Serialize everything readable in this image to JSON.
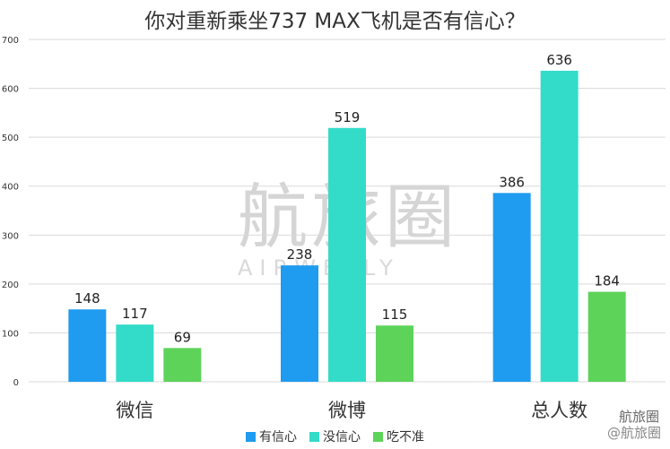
{
  "chart_data": {
    "type": "bar",
    "title": "你对重新乘坐737 MAX飞机是否有信心？",
    "categories": [
      "微信",
      "微博",
      "总人数"
    ],
    "series": [
      {
        "name": "有信心",
        "values": [
          148,
          238,
          386
        ],
        "color": "#1f9bf0"
      },
      {
        "name": "没信心",
        "values": [
          117,
          519,
          636
        ],
        "color": "#33dcc9"
      },
      {
        "name": "吃不准",
        "values": [
          69,
          115,
          184
        ],
        "color": "#5dd35a"
      }
    ],
    "ylim": [
      0,
      700
    ],
    "yticks": [
      0,
      100,
      200,
      300,
      400,
      500,
      600,
      700
    ],
    "grid": true,
    "legend": "bottom"
  },
  "watermark": {
    "text": "航旅圈",
    "subtext": "AIRWEFLY"
  },
  "branding": {
    "line1": "航旅圈",
    "line2": "@航旅圈"
  }
}
